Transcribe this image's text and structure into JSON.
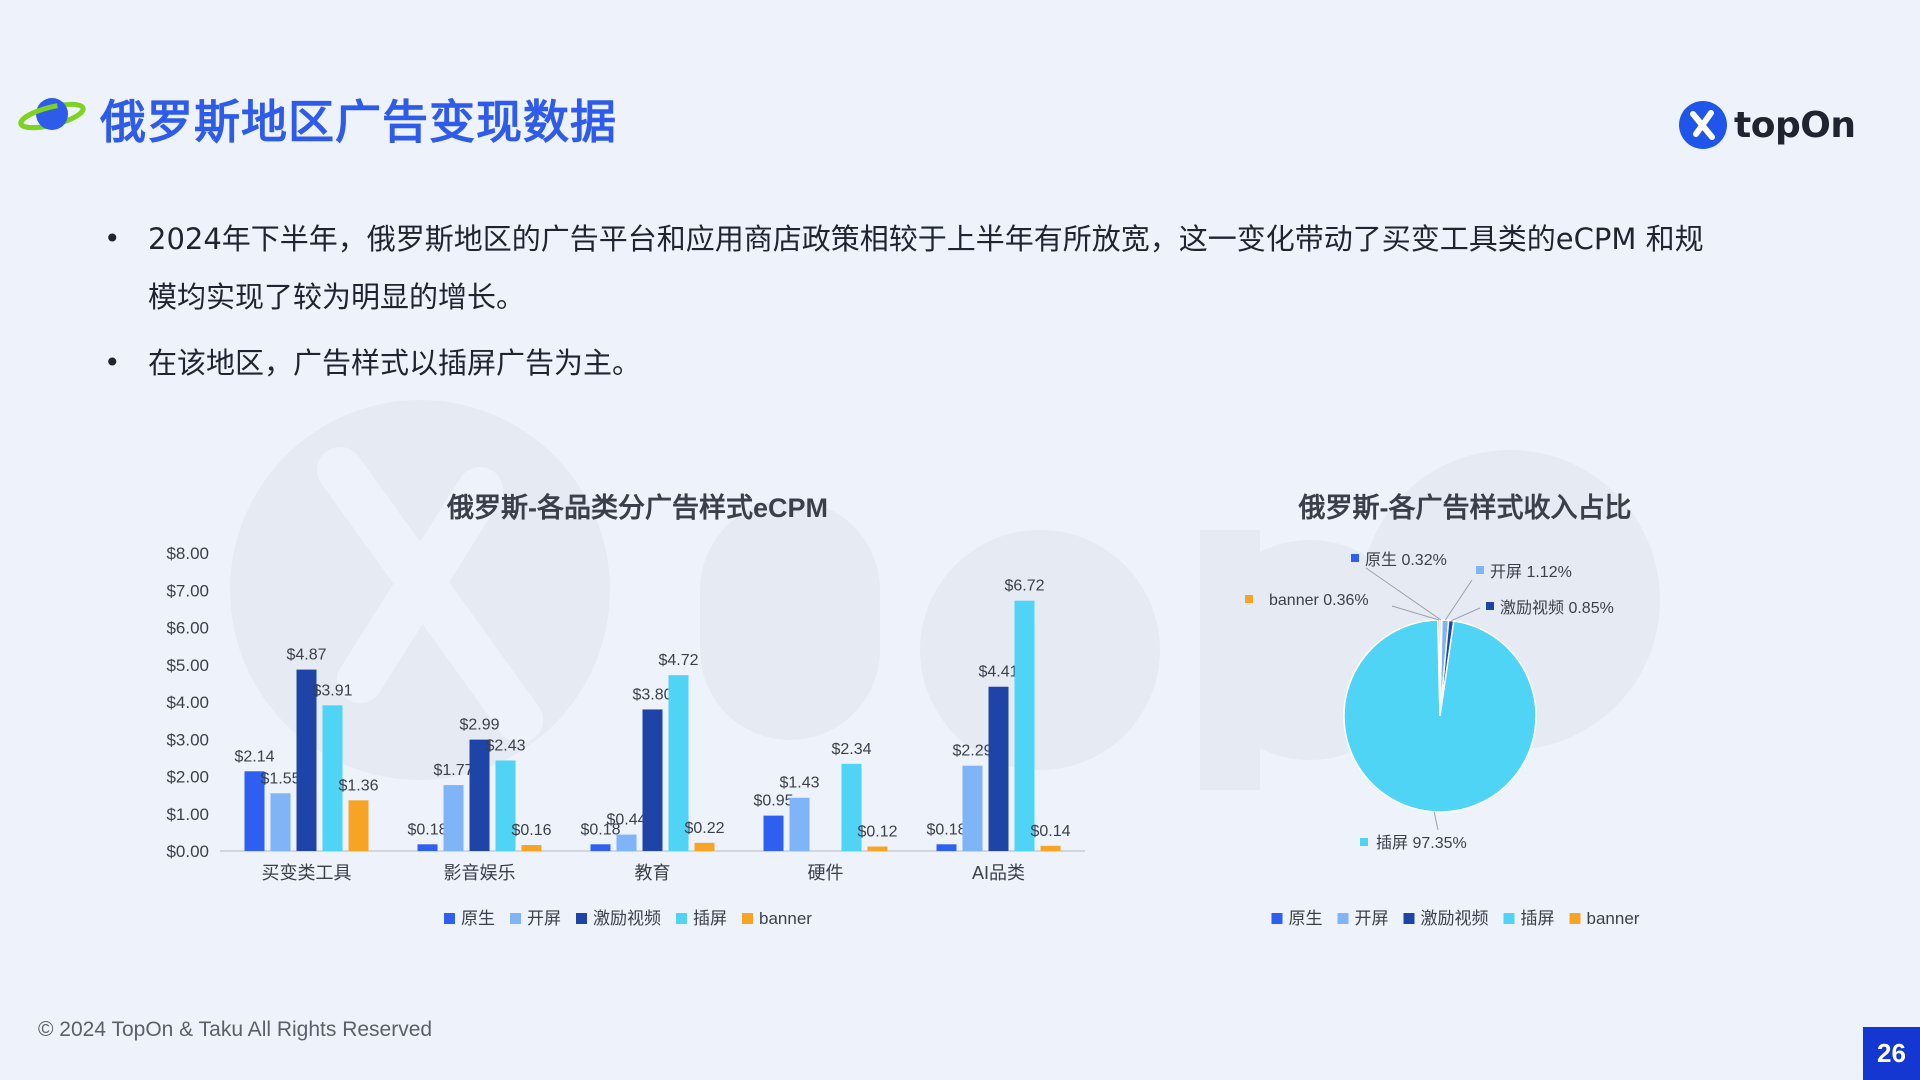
{
  "header": {
    "title": "俄罗斯地区广告变现数据",
    "logo_text": "topOn"
  },
  "bullets": [
    "2024年下半年，俄罗斯地区的广告平台和应用商店政策相较于上半年有所放宽，这一变化带动了买变工具类的eCPM 和规模均实现了较为明显的增长。",
    "在该地区，广告样式以插屏广告为主。"
  ],
  "footer": {
    "copyright": "© 2024 TopOn & Taku All Rights Reserved",
    "page_number": "26"
  },
  "colors": {
    "原生": "#2f5ff0",
    "开屏": "#7fb4f7",
    "激励视频": "#1f44a8",
    "插屏": "#4fd4f5",
    "banner": "#f7a424"
  },
  "chart_data": [
    {
      "type": "bar",
      "title": "俄罗斯-各品类分广告样式eCPM",
      "categories": [
        "买变类工具",
        "影音娱乐",
        "教育",
        "硬件",
        "AI品类"
      ],
      "y_ticks": [
        "$0.00",
        "$1.00",
        "$2.00",
        "$3.00",
        "$4.00",
        "$5.00",
        "$6.00",
        "$7.00",
        "$8.00"
      ],
      "ylim": [
        0,
        8
      ],
      "series": [
        {
          "name": "原生",
          "values": [
            2.14,
            0.18,
            0.18,
            0.95,
            0.18
          ],
          "labels": [
            "$2.14",
            "$0.18",
            "$0.18",
            "$0.95",
            "$0.18"
          ]
        },
        {
          "name": "开屏",
          "values": [
            1.55,
            1.77,
            0.44,
            1.43,
            2.29
          ],
          "labels": [
            "$1.55",
            "$1.77",
            "$0.44",
            "$1.43",
            "$2.29"
          ]
        },
        {
          "name": "激励视频",
          "values": [
            4.87,
            2.99,
            3.8,
            null,
            4.41
          ],
          "labels": [
            "$4.87",
            "$2.99",
            "$3.80",
            "",
            "$4.41"
          ]
        },
        {
          "name": "插屏",
          "values": [
            3.91,
            2.43,
            4.72,
            2.34,
            6.72
          ],
          "labels": [
            "$3.91",
            "$2.43",
            "$4.72",
            "$2.34",
            "$6.72"
          ]
        },
        {
          "name": "banner",
          "values": [
            1.36,
            0.16,
            0.22,
            0.12,
            0.14
          ],
          "labels": [
            "$1.36",
            "$0.16",
            "$0.22",
            "$0.12",
            "$0.14"
          ]
        }
      ],
      "legend": [
        "原生",
        "开屏",
        "激励视频",
        "插屏",
        "banner"
      ],
      "legend_position": "bottom",
      "grid": false
    },
    {
      "type": "pie",
      "title": "俄罗斯-各广告样式收入占比",
      "slices": [
        {
          "name": "原生",
          "value": 0.32,
          "label": "原生 0.32%"
        },
        {
          "name": "开屏",
          "value": 1.12,
          "label": "开屏 1.12%"
        },
        {
          "name": "激励视频",
          "value": 0.85,
          "label": "激励视频 0.85%"
        },
        {
          "name": "插屏",
          "value": 97.35,
          "label": "插屏 97.35%"
        },
        {
          "name": "banner",
          "value": 0.36,
          "label": "banner 0.36%"
        }
      ],
      "legend": [
        "原生",
        "开屏",
        "激励视频",
        "插屏",
        "banner"
      ],
      "legend_position": "bottom"
    }
  ]
}
